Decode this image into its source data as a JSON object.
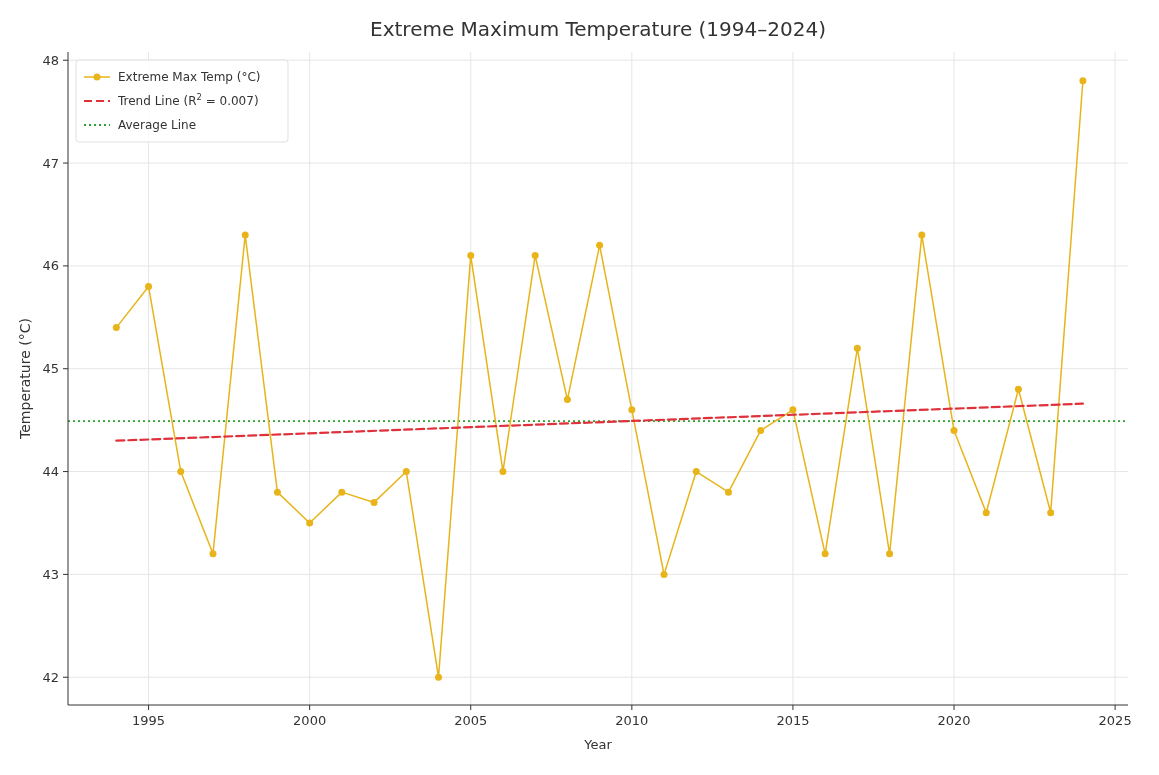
{
  "chart_data": {
    "type": "line",
    "title": "Extreme Maximum Temperature (1994–2024)",
    "xlabel": "Year",
    "ylabel": "Temperature (°C)",
    "x": [
      1994,
      1995,
      1996,
      1997,
      1998,
      1999,
      2000,
      2001,
      2002,
      2003,
      2004,
      2005,
      2006,
      2007,
      2008,
      2009,
      2010,
      2011,
      2012,
      2013,
      2014,
      2015,
      2016,
      2017,
      2018,
      2019,
      2020,
      2021,
      2022,
      2023,
      2024
    ],
    "series": [
      {
        "name": "Extreme Max Temp (°C)",
        "color": "#e8b41a",
        "marker": "circle",
        "line_style": "solid",
        "values": [
          45.4,
          45.8,
          44.0,
          43.2,
          46.3,
          43.8,
          43.5,
          43.8,
          43.7,
          44.0,
          42.0,
          46.1,
          44.0,
          46.1,
          44.7,
          46.2,
          44.6,
          43.0,
          44.0,
          43.8,
          44.4,
          44.6,
          43.2,
          45.2,
          43.2,
          46.3,
          44.4,
          43.6,
          44.8,
          43.6,
          47.8
        ]
      },
      {
        "name": "Trend Line (R$^{2}$ = 0.007)",
        "type": "line",
        "color": "#e0303a",
        "marker": "none",
        "line_style": "dashed",
        "x": [
          1994,
          2024
        ],
        "values": [
          44.3,
          44.66
        ]
      }
    ],
    "ref_lines": [
      {
        "axis": "y",
        "value": 44.49,
        "label": "Average Line",
        "color": "#2ca02c",
        "line_style": "dotted"
      }
    ],
    "xlim": [
      1992.5,
      2025.4
    ],
    "xticks": [
      1995,
      2000,
      2005,
      2010,
      2015,
      2020,
      2025
    ],
    "ylim": [
      41.73,
      48.08
    ],
    "yticks": [
      42,
      43,
      44,
      45,
      46,
      47,
      48
    ],
    "grid": true,
    "legend": "top left"
  }
}
